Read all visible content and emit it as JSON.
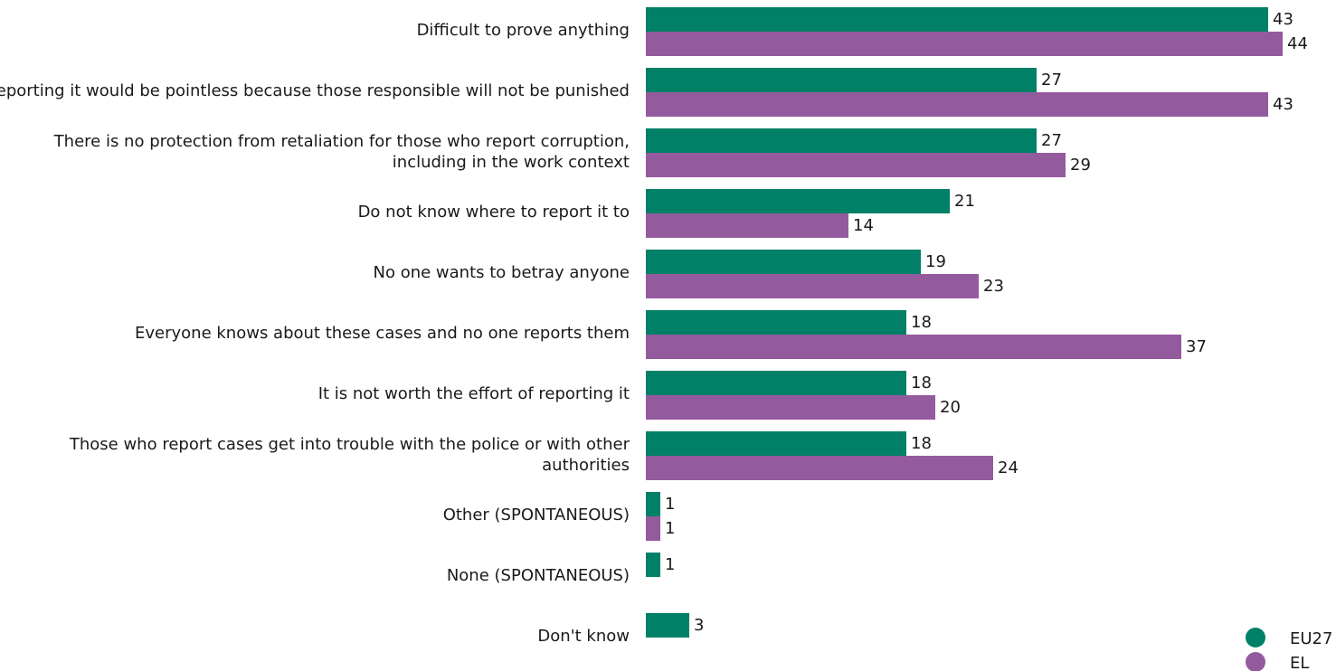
{
  "chart_data": {
    "type": "bar",
    "orientation": "horizontal",
    "categories": [
      [
        "Difficult to prove anything"
      ],
      [
        "Reporting it would be pointless because those responsible will not be punished"
      ],
      [
        "There is no protection from retaliation for those who report corruption,",
        "including in the work context"
      ],
      [
        "Do not know where to report it to"
      ],
      [
        "No one wants to betray anyone"
      ],
      [
        "Everyone knows about these cases and no one reports them"
      ],
      [
        "It is not worth the effort of reporting it"
      ],
      [
        "Those who report cases get into trouble with the police or with other",
        "authorities"
      ],
      [
        "Other (SPONTANEOUS)"
      ],
      [
        "None (SPONTANEOUS)"
      ],
      [
        "Don't know"
      ]
    ],
    "series": [
      {
        "name": "EU27",
        "color": "#008066",
        "values": [
          43,
          27,
          27,
          21,
          19,
          18,
          18,
          18,
          1,
          1,
          3
        ]
      },
      {
        "name": "EL",
        "color": "#945A9E",
        "values": [
          44,
          43,
          29,
          14,
          23,
          37,
          20,
          24,
          1,
          null,
          null
        ]
      }
    ],
    "legend_position": "bottom-right",
    "grid": false,
    "xlim": [
      0,
      44
    ]
  }
}
